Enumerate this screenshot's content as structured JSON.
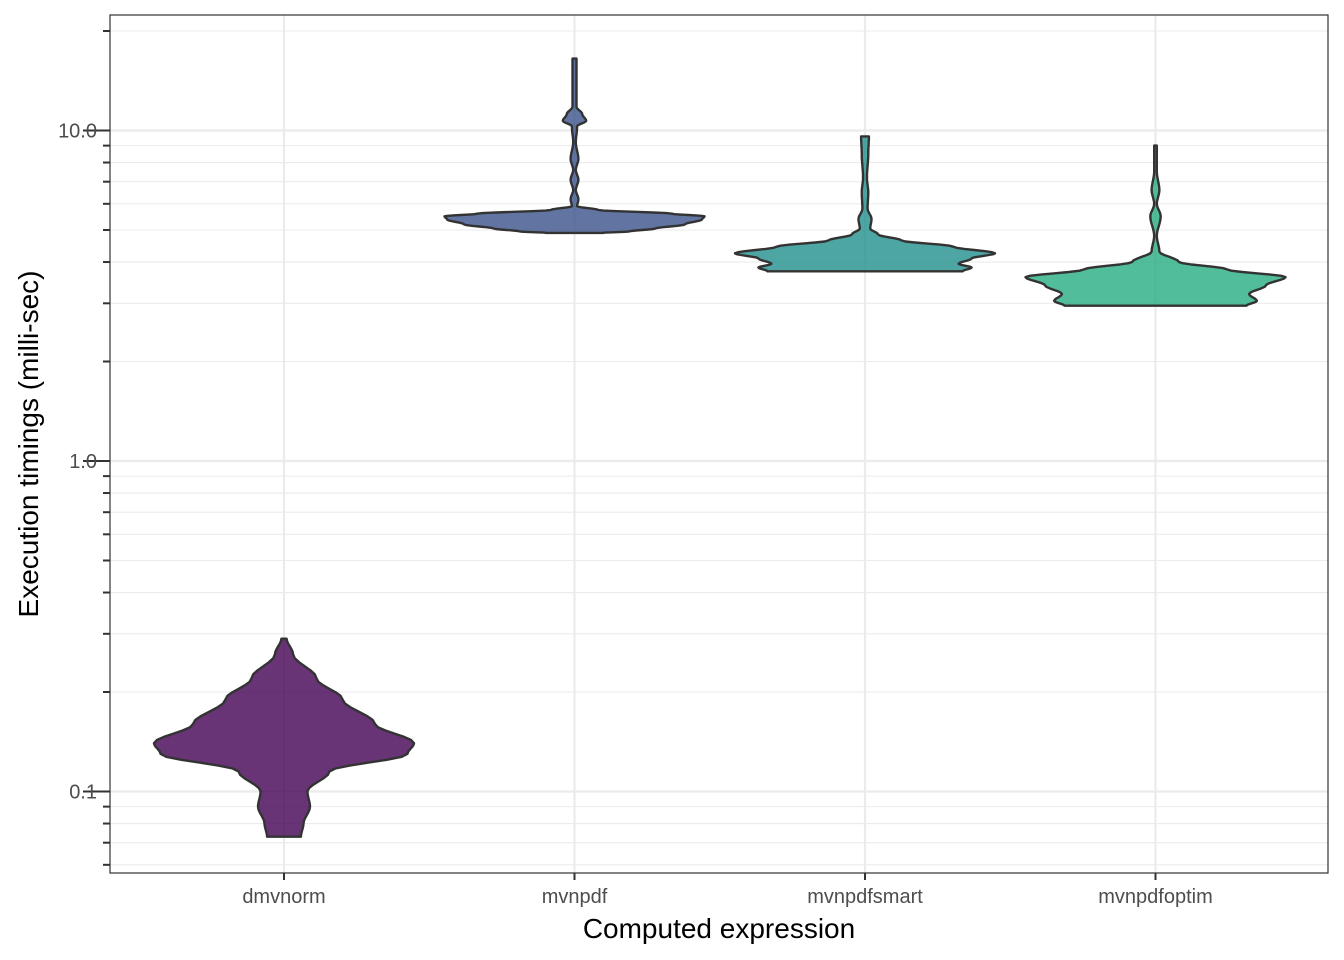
{
  "chart_data": {
    "type": "violin",
    "xlabel": "Computed expression",
    "ylabel": "Execution timings (milli-sec)",
    "yscale": "log10",
    "ylim": [
      0.058,
      22
    ],
    "y_ticks": [
      0.1,
      1.0,
      10.0
    ],
    "y_tick_labels": [
      "0.1",
      "1.0",
      "10.0"
    ],
    "categories": [
      "dmvnorm",
      "mvnpdf",
      "mvnpdfsmart",
      "mvnpdfoptim"
    ],
    "grid": true,
    "legend": "none",
    "series": [
      {
        "category": "dmvnorm",
        "color": "#440154",
        "min": 0.073,
        "max": 0.29,
        "density_profile": [
          [
            0.073,
            0.13
          ],
          [
            0.08,
            0.15
          ],
          [
            0.09,
            0.2
          ],
          [
            0.1,
            0.18
          ],
          [
            0.115,
            0.35
          ],
          [
            0.13,
            0.95
          ],
          [
            0.14,
            1.0
          ],
          [
            0.16,
            0.7
          ],
          [
            0.19,
            0.45
          ],
          [
            0.22,
            0.25
          ],
          [
            0.26,
            0.07
          ],
          [
            0.29,
            0.02
          ]
        ]
      },
      {
        "category": "mvnpdf",
        "color": "#3b528b",
        "min": 4.9,
        "max": 16.5,
        "density_profile": [
          [
            4.9,
            0.22
          ],
          [
            4.95,
            0.42
          ],
          [
            5.05,
            0.62
          ],
          [
            5.2,
            0.85
          ],
          [
            5.38,
            0.98
          ],
          [
            5.5,
            1.0
          ],
          [
            5.6,
            0.75
          ],
          [
            5.75,
            0.18
          ],
          [
            5.9,
            0.02
          ],
          [
            6.2,
            0.03
          ],
          [
            6.6,
            0.01
          ],
          [
            7.1,
            0.03
          ],
          [
            7.6,
            0.01
          ],
          [
            8.2,
            0.03
          ],
          [
            9.2,
            0.01
          ],
          [
            10.3,
            0.02
          ],
          [
            10.7,
            0.09
          ],
          [
            11.2,
            0.06
          ],
          [
            11.8,
            0.015
          ],
          [
            16.5,
            0.015
          ]
        ]
      },
      {
        "category": "mvnpdfsmart",
        "color": "#21908c",
        "min": 3.75,
        "max": 9.6,
        "density_profile": [
          [
            3.75,
            0.75
          ],
          [
            3.85,
            0.82
          ],
          [
            3.95,
            0.72
          ],
          [
            4.1,
            0.82
          ],
          [
            4.25,
            1.0
          ],
          [
            4.45,
            0.68
          ],
          [
            4.65,
            0.28
          ],
          [
            4.85,
            0.1
          ],
          [
            5.05,
            0.04
          ],
          [
            5.4,
            0.05
          ],
          [
            5.8,
            0.02
          ],
          [
            6.5,
            0.025
          ],
          [
            7.2,
            0.015
          ],
          [
            8.5,
            0.025
          ],
          [
            9.6,
            0.03
          ]
        ]
      },
      {
        "category": "mvnpdfoptim",
        "color": "#27ad81",
        "min": 2.95,
        "max": 9.0,
        "density_profile": [
          [
            2.95,
            0.7
          ],
          [
            3.05,
            0.78
          ],
          [
            3.2,
            0.72
          ],
          [
            3.4,
            0.85
          ],
          [
            3.6,
            1.0
          ],
          [
            3.8,
            0.55
          ],
          [
            4.0,
            0.18
          ],
          [
            4.3,
            0.03
          ],
          [
            4.8,
            0.01
          ],
          [
            5.5,
            0.04
          ],
          [
            6.0,
            0.01
          ],
          [
            6.6,
            0.03
          ],
          [
            7.5,
            0.01
          ],
          [
            9.0,
            0.01
          ]
        ]
      }
    ]
  }
}
